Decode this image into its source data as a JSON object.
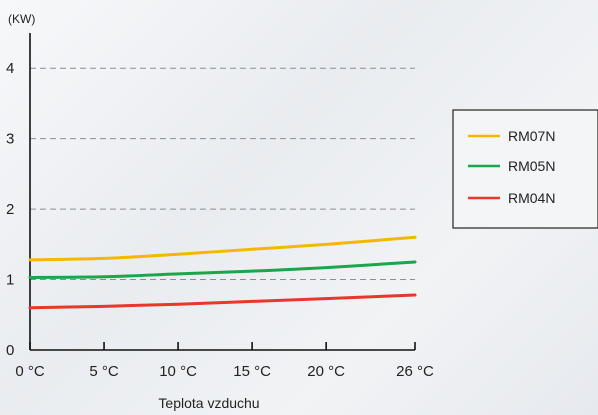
{
  "chart_data": {
    "type": "line",
    "unit_label": "(KW)",
    "xlabel": "Teplota vzduchu",
    "x": [
      0,
      5,
      10,
      15,
      20,
      26
    ],
    "x_tick_labels": [
      "0 °C",
      "5 °C",
      "10 °C",
      "15 °C",
      "20 °C",
      "26 °C"
    ],
    "y_ticks": [
      0,
      1,
      2,
      3,
      4
    ],
    "y_tick_labels": [
      "0",
      "1",
      "2",
      "3",
      "4"
    ],
    "xlim": [
      0,
      26
    ],
    "ylim": [
      0,
      4.5
    ],
    "grid": "horizontal dashed",
    "legend_position": "right",
    "series": [
      {
        "name": "RM07N",
        "color": "#f5b800",
        "values": [
          1.28,
          1.3,
          1.36,
          1.43,
          1.5,
          1.6
        ]
      },
      {
        "name": "RM05N",
        "color": "#1aa64a",
        "values": [
          1.03,
          1.04,
          1.08,
          1.12,
          1.17,
          1.25
        ]
      },
      {
        "name": "RM04N",
        "color": "#e8372b",
        "values": [
          0.6,
          0.62,
          0.65,
          0.69,
          0.73,
          0.78
        ]
      }
    ]
  }
}
